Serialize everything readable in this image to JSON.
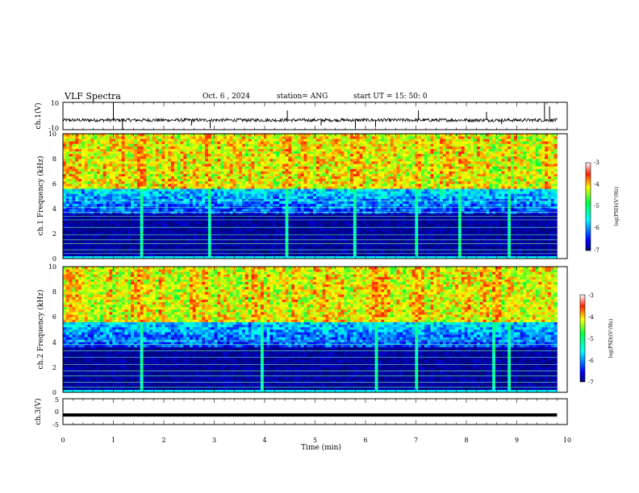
{
  "header": {
    "title": "VLF Spectra",
    "date": "Oct. 6 , 2024",
    "station": "station= ANG",
    "start": "start UT = 15: 50: 0"
  },
  "chart_data": [
    {
      "type": "line",
      "ylabel": "ch.1(V)",
      "xlim": [
        0,
        10
      ],
      "ylim": [
        -10,
        10
      ],
      "yticks": [
        "10",
        "-10"
      ],
      "baseline": -3,
      "noise_amplitude": 1.2,
      "spikes": [
        {
          "x": 1.0,
          "y": 10
        },
        {
          "x": 1.18,
          "y": -10
        },
        {
          "x": 2.55,
          "y": -7
        },
        {
          "x": 2.92,
          "y": -9
        },
        {
          "x": 4.45,
          "y": 4
        },
        {
          "x": 5.12,
          "y": -7
        },
        {
          "x": 5.8,
          "y": -9
        },
        {
          "x": 6.2,
          "y": -8
        },
        {
          "x": 7.05,
          "y": 4
        },
        {
          "x": 8.4,
          "y": 3
        },
        {
          "x": 8.7,
          "y": -6
        },
        {
          "x": 9.55,
          "y": 10
        },
        {
          "x": 9.65,
          "y": 7
        }
      ]
    },
    {
      "type": "heatmap",
      "ylabel": "ch.1 Frequency (kHz)",
      "xlim": [
        0,
        9.8
      ],
      "ylim": [
        0,
        10
      ],
      "yticks": [
        "0",
        "2",
        "4",
        "6",
        "8",
        "10"
      ],
      "colorbar": {
        "label": "log(PSD)(V²/Hz)",
        "range": [
          -7,
          -3
        ],
        "ticks": [
          "-3",
          "-4",
          "-5",
          "-6",
          "-7"
        ]
      },
      "lines_khz": [
        0.4,
        0.7,
        1.2,
        1.5,
        1.9,
        2.5,
        3.1,
        3.4,
        3.7,
        4.1,
        4.6
      ],
      "strong_events": [
        1.55,
        2.9,
        4.45,
        5.8,
        7.02,
        7.88,
        8.85
      ]
    },
    {
      "type": "heatmap",
      "ylabel": "ch.2 Frequency (kHz)",
      "xlim": [
        0,
        9.8
      ],
      "ylim": [
        0,
        10
      ],
      "yticks": [
        "0",
        "2",
        "4",
        "6",
        "8",
        "10"
      ],
      "colorbar": {
        "label": "log(PSD)(V²/Hz)",
        "range": [
          -7,
          -3
        ],
        "ticks": [
          "-3",
          "-4",
          "-5",
          "-6",
          "-7"
        ]
      },
      "lines_khz": [
        0.4,
        0.8,
        1.3,
        1.7,
        2.2,
        2.8,
        3.3,
        3.8,
        4.1
      ],
      "strong_events": [
        1.55,
        3.95,
        6.2,
        7.02,
        8.55,
        8.85
      ]
    },
    {
      "type": "line",
      "ylabel": "ch.3(V)",
      "xlabel": "Time (min)",
      "xlim": [
        0,
        10
      ],
      "ylim": [
        -5,
        5
      ],
      "yticks": [
        "5",
        "0",
        "-5"
      ],
      "value": -1.3,
      "x_ticklabels": [
        "0",
        "1",
        "2",
        "3",
        "4",
        "5",
        "6",
        "7",
        "8",
        "9",
        "10"
      ]
    }
  ]
}
